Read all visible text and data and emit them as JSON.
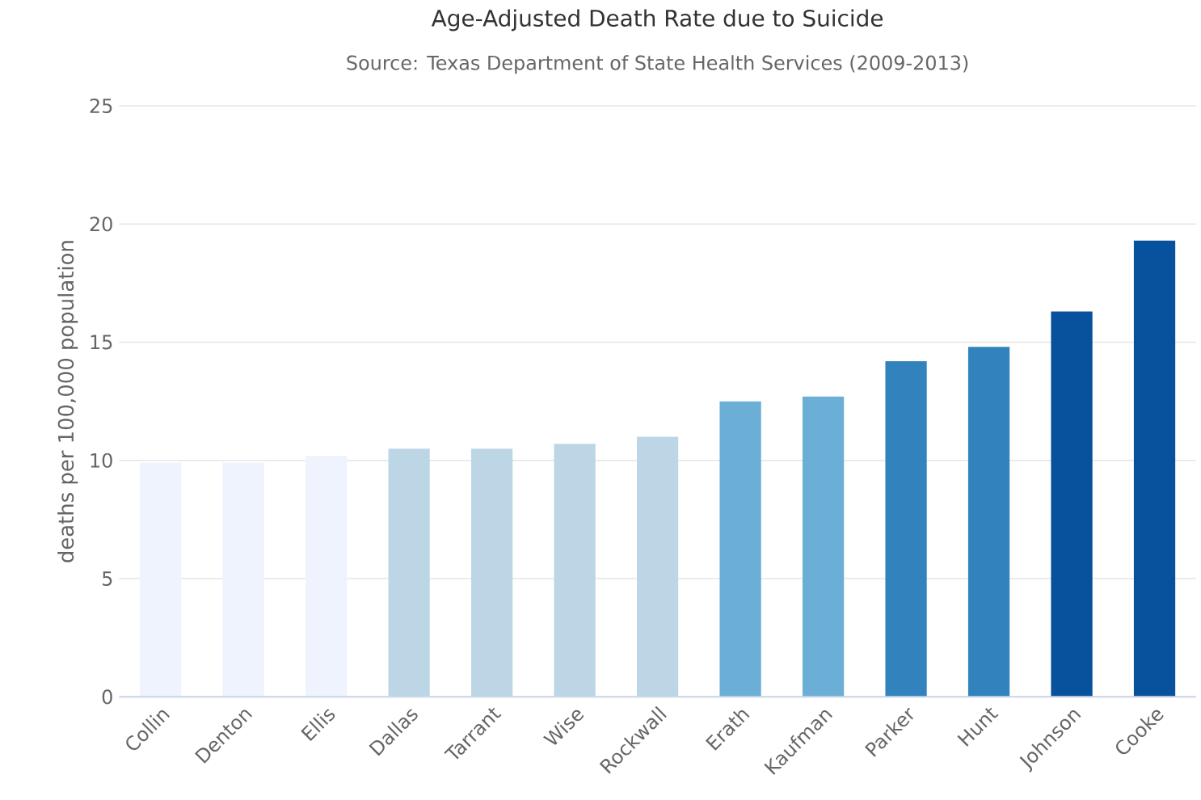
{
  "chart_data": {
    "type": "bar",
    "title": "Age-Adjusted Death Rate due to Suicide",
    "subtitle": "Source: Texas Department of State Health Services (2009-2013)",
    "ylabel": "deaths per 100,000 population",
    "categories": [
      "Collin",
      "Denton",
      "Ellis",
      "Dallas",
      "Tarrant",
      "Wise",
      "Rockwall",
      "Erath",
      "Kaufman",
      "Parker",
      "Hunt",
      "Johnson",
      "Cooke"
    ],
    "values": [
      9.9,
      9.9,
      10.2,
      10.5,
      10.5,
      10.7,
      11.0,
      12.5,
      12.7,
      14.2,
      14.8,
      16.3,
      19.3
    ],
    "colors": [
      "#eef3fd",
      "#eef3fd",
      "#eef3fd",
      "#bcd6e6",
      "#bcd6e6",
      "#bcd6e6",
      "#bcd6e6",
      "#6baed6",
      "#6baed6",
      "#3182bd",
      "#3182bd",
      "#08519c",
      "#08519c"
    ],
    "ylim": [
      0,
      25
    ],
    "yticks": [
      0,
      5,
      10,
      15,
      20,
      25
    ],
    "grid": "y"
  }
}
